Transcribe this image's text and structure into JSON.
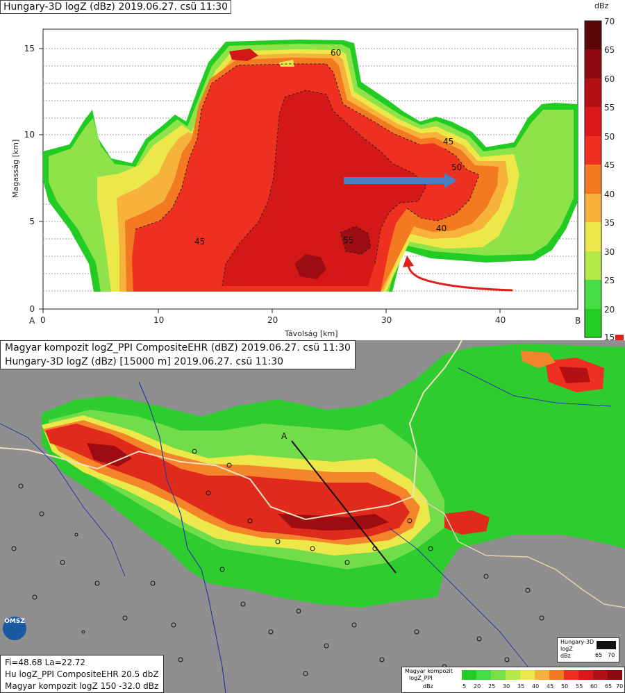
{
  "cross_section": {
    "title": "Hungary-3D logZ (dBz) 2019.06.27. csü 11:30",
    "ylabel": "Magasság [km]",
    "xlabel": "Távolság [km]",
    "x_start_label": "A",
    "x_end_label": "B",
    "x_ticks": [
      "0",
      "10",
      "20",
      "30",
      "40"
    ],
    "y_ticks": [
      "0",
      "5",
      "10",
      "15"
    ],
    "contour_labels": [
      "60",
      "45",
      "50",
      "55",
      "40",
      "45"
    ],
    "colorbar": {
      "unit": "dBz",
      "ticks": [
        "70",
        "65",
        "60",
        "55",
        "50",
        "45",
        "40",
        "35",
        "30",
        "25",
        "20",
        "15"
      ]
    }
  },
  "map": {
    "title_lines": [
      "Magyar kompozit logZ_PPI CompositeEHR (dBZ) 2019.06.27. csü 11:30",
      "Hungary-3D logZ (dBz) [15000 m] 2019.06.27. csü 11:30"
    ],
    "section_label": "A",
    "logo_text": "OMSZ",
    "info_lines": [
      "Fi=48.68 La=22.72",
      "Hu logZ_PPI CompositeEHR   20.5 dbZ",
      "Magyar kompozit logZ 150   -32.0 dBz"
    ],
    "legend_small": {
      "title": "Hungary-3D",
      "unit": "logZ",
      "unit2": "dBz",
      "ticks": [
        "65",
        "70"
      ]
    },
    "legend_wide": {
      "title_lines": [
        "Magyar kompozit",
        "logZ_PPI",
        "dBz"
      ],
      "ticks": [
        "15",
        "20",
        "25",
        "30",
        "35",
        "40",
        "45",
        "50",
        "55",
        "60",
        "65",
        "70"
      ]
    }
  },
  "colors": {
    "c15": "#22cc22",
    "c20": "#44dd44",
    "c25": "#77e044",
    "c30": "#b6e84a",
    "c35": "#ece84a",
    "c40": "#f6b23a",
    "c45": "#f47a22",
    "c50": "#ee3020",
    "c55": "#d8181a",
    "c60": "#b40f14",
    "c65": "#8c0a10",
    "c70": "#5a0508",
    "arrow_blue": "#4a7ec0",
    "arrow_red": "#e0201a",
    "map_background": "#8f8f8f"
  }
}
